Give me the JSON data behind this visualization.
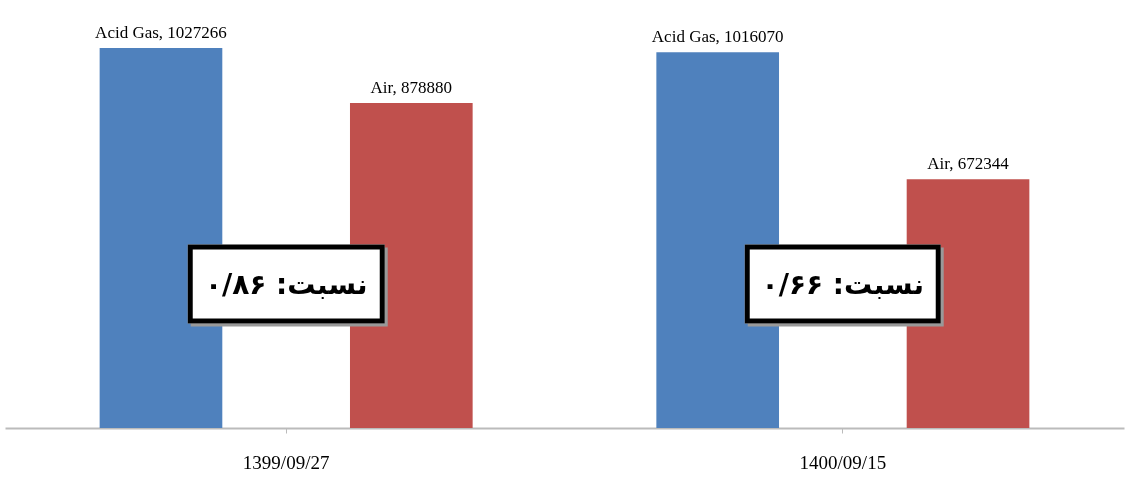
{
  "chart_data": {
    "type": "bar",
    "categories": [
      "1399/09/27",
      "1400/09/15"
    ],
    "series": [
      {
        "color": "#4f81bd",
        "values": [
          1027266,
          1016070
        ],
        "value_labels": [
          "Acid Gas, 1027266",
          "Acid Gas, 1016070"
        ]
      },
      {
        "color": "#c0504d",
        "values": [
          878880,
          672344
        ],
        "value_labels": [
          "Air, 878880",
          "Air, 672344"
        ]
      }
    ],
    "annotations": [
      "نسبت: ۰/۸۶",
      "نسبت: ۰/۶۶"
    ]
  }
}
